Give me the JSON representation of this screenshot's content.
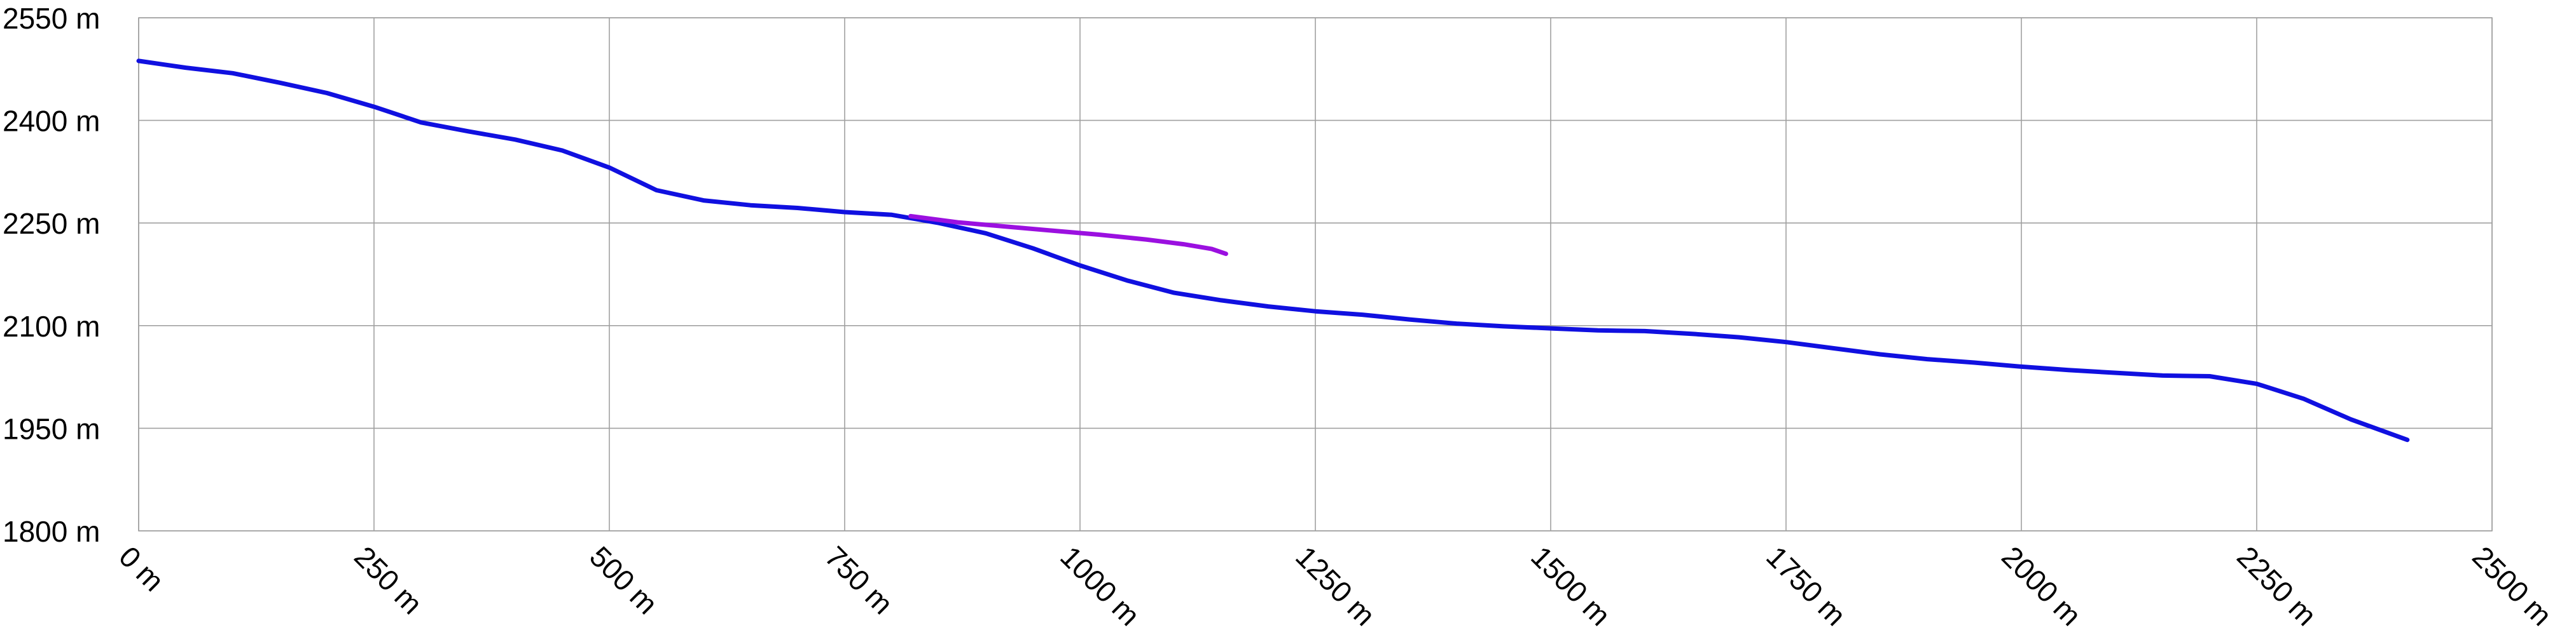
{
  "chart_data": {
    "type": "line",
    "title": "",
    "xlabel": "",
    "ylabel": "",
    "xlim": [
      0,
      2500
    ],
    "ylim": [
      1800,
      2550
    ],
    "grid": true,
    "legend": "none",
    "x_ticks": [
      0,
      250,
      500,
      750,
      1000,
      1250,
      1500,
      1750,
      2000,
      2250,
      2500
    ],
    "x_tick_labels": [
      "0 m",
      "250 m",
      "500 m",
      "750 m",
      "1000 m",
      "1250 m",
      "1500 m",
      "1750 m",
      "2000 m",
      "2250 m",
      "2500 m"
    ],
    "y_ticks": [
      1800,
      1950,
      2100,
      2250,
      2400,
      2550
    ],
    "y_tick_labels": [
      "1800 m",
      "1950 m",
      "2100 m",
      "2250 m",
      "2400 m",
      "2550 m"
    ],
    "series": [
      {
        "color": "#1010e0",
        "x": [
          0,
          50,
          100,
          150,
          200,
          250,
          300,
          350,
          400,
          450,
          500,
          550,
          600,
          650,
          700,
          750,
          800,
          850,
          900,
          950,
          1000,
          1050,
          1100,
          1150,
          1200,
          1250,
          1300,
          1350,
          1400,
          1450,
          1500,
          1550,
          1600,
          1650,
          1700,
          1750,
          1800,
          1850,
          1900,
          1950,
          2000,
          2050,
          2100,
          2150,
          2200,
          2250,
          2300,
          2350,
          2400,
          2410
        ],
        "y": [
          2487,
          2477,
          2469,
          2455,
          2440,
          2420,
          2397,
          2384,
          2372,
          2356,
          2331,
          2298,
          2283,
          2276,
          2272,
          2266,
          2262,
          2250,
          2235,
          2213,
          2188,
          2166,
          2148,
          2137,
          2128,
          2121,
          2116,
          2109,
          2103,
          2099,
          2096,
          2093,
          2092,
          2088,
          2083,
          2076,
          2067,
          2058,
          2051,
          2046,
          2040,
          2035,
          2031,
          2027,
          2026,
          2015,
          1993,
          1963,
          1938,
          1933
        ]
      },
      {
        "color": "#9b10e0",
        "x": [
          820,
          870,
          920,
          970,
          1020,
          1070,
          1110,
          1140,
          1155
        ],
        "y": [
          2260,
          2251,
          2245,
          2239,
          2233,
          2226,
          2219,
          2212,
          2205
        ]
      }
    ]
  }
}
